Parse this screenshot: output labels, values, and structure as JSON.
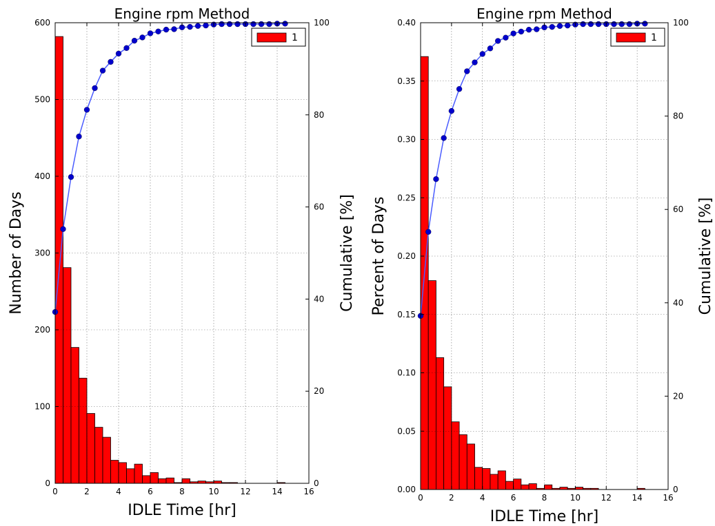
{
  "chart_data": [
    {
      "type": "bar",
      "title": "Engine rpm Method",
      "xlabel": "IDLE Time [hr]",
      "ylabel": "Number of Days",
      "y2label": "Cumulative [%]",
      "xlim": [
        0,
        16
      ],
      "ylim": [
        0,
        600
      ],
      "y2lim": [
        0,
        100
      ],
      "grid": true,
      "legend": {
        "position": "top-right",
        "entries": [
          "1"
        ]
      },
      "xticks": [
        "0",
        "2",
        "4",
        "6",
        "8",
        "10",
        "12",
        "14",
        "16"
      ],
      "yticks": [
        "0",
        "100",
        "200",
        "300",
        "400",
        "500",
        "600"
      ],
      "y2ticks": [
        "0",
        "20",
        "40",
        "60",
        "80",
        "100"
      ],
      "bar_color": "#ff0000",
      "line_color": "#0000cc",
      "bin_width": 0.5,
      "bin_left_edges": [
        0,
        0.5,
        1,
        1.5,
        2,
        2.5,
        3,
        3.5,
        4,
        4.5,
        5,
        5.5,
        6,
        6.5,
        7,
        7.5,
        8,
        8.5,
        9,
        9.5,
        10,
        10.5,
        11,
        11.5,
        12,
        12.5,
        13,
        13.5,
        14,
        14.5
      ],
      "series": [
        {
          "name": "1",
          "kind": "bar",
          "values": [
            582,
            281,
            177,
            137,
            91,
            73,
            60,
            30,
            27,
            19,
            25,
            10,
            14,
            6,
            7,
            1,
            6,
            2,
            3,
            2,
            3,
            1,
            1,
            0,
            0,
            0,
            0,
            0,
            1,
            0
          ]
        },
        {
          "kind": "line",
          "x": [
            0,
            0.5,
            1,
            1.5,
            2,
            2.5,
            3,
            3.5,
            4,
            4.5,
            5,
            5.5,
            6,
            6.5,
            7,
            7.5,
            8,
            8.5,
            9,
            9.5,
            10,
            10.5,
            11,
            11.5,
            12,
            12.5,
            13,
            13.5,
            14,
            14.5
          ],
          "values": [
            37.2,
            55.2,
            66.5,
            75.3,
            81.1,
            85.8,
            89.6,
            91.5,
            93.3,
            94.5,
            96.1,
            96.8,
            97.7,
            98.1,
            98.5,
            98.6,
            99.0,
            99.1,
            99.3,
            99.4,
            99.6,
            99.7,
            99.7,
            99.7,
            99.7,
            99.7,
            99.7,
            99.7,
            99.8,
            99.8
          ]
        }
      ]
    },
    {
      "type": "bar",
      "title": "Engine rpm Method",
      "xlabel": "IDLE Time [hr]",
      "ylabel": "Percent of Days",
      "y2label": "Cumulative [%]",
      "xlim": [
        0,
        16
      ],
      "ylim": [
        0,
        0.4
      ],
      "y2lim": [
        0,
        100
      ],
      "grid": true,
      "legend": {
        "position": "top-right",
        "entries": [
          "1"
        ]
      },
      "xticks": [
        "0",
        "2",
        "4",
        "6",
        "8",
        "10",
        "12",
        "14",
        "16"
      ],
      "yticks": [
        "0.00",
        "0.05",
        "0.10",
        "0.15",
        "0.20",
        "0.25",
        "0.30",
        "0.35",
        "0.40"
      ],
      "y2ticks": [
        "0",
        "20",
        "40",
        "60",
        "80",
        "100"
      ],
      "bar_color": "#ff0000",
      "line_color": "#0000cc",
      "bin_width": 0.5,
      "bin_left_edges": [
        0,
        0.5,
        1,
        1.5,
        2,
        2.5,
        3,
        3.5,
        4,
        4.5,
        5,
        5.5,
        6,
        6.5,
        7,
        7.5,
        8,
        8.5,
        9,
        9.5,
        10,
        10.5,
        11,
        11.5,
        12,
        12.5,
        13,
        13.5,
        14,
        14.5
      ],
      "series": [
        {
          "name": "1",
          "kind": "bar",
          "values": [
            0.371,
            0.179,
            0.113,
            0.088,
            0.058,
            0.047,
            0.039,
            0.019,
            0.018,
            0.013,
            0.016,
            0.007,
            0.009,
            0.004,
            0.005,
            0.001,
            0.004,
            0.001,
            0.002,
            0.001,
            0.002,
            0.001,
            0.001,
            0,
            0,
            0,
            0,
            0,
            0.001,
            0
          ]
        },
        {
          "kind": "line",
          "x": [
            0,
            0.5,
            1,
            1.5,
            2,
            2.5,
            3,
            3.5,
            4,
            4.5,
            5,
            5.5,
            6,
            6.5,
            7,
            7.5,
            8,
            8.5,
            9,
            9.5,
            10,
            10.5,
            11,
            11.5,
            12,
            12.5,
            13,
            13.5,
            14,
            14.5
          ],
          "values": [
            37.2,
            55.2,
            66.5,
            75.3,
            81.1,
            85.8,
            89.6,
            91.5,
            93.3,
            94.5,
            96.1,
            96.8,
            97.7,
            98.1,
            98.5,
            98.6,
            99.0,
            99.1,
            99.3,
            99.4,
            99.6,
            99.7,
            99.7,
            99.7,
            99.7,
            99.7,
            99.7,
            99.7,
            99.8,
            99.8
          ]
        }
      ]
    }
  ]
}
